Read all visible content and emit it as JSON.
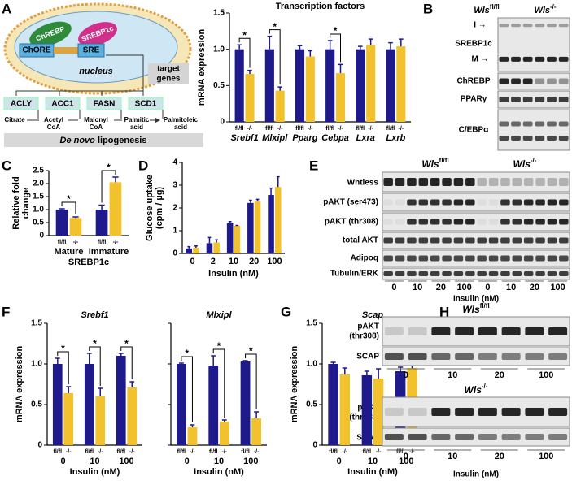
{
  "chart_data": [
    {
      "type": "bar",
      "title": "Transcription factors",
      "ylabel": [
        "mRNA expression"
      ],
      "categories": [
        "Srebf1",
        "Mlxipl",
        "Pparg",
        "Cebpa",
        "Lxra",
        "Lxrb"
      ],
      "series": [
        {
          "name": "fl/fl",
          "color": "#1f1a8c",
          "values": [
            1.0,
            1.0,
            1.0,
            1.0,
            1.0,
            1.0
          ],
          "errors": [
            0.06,
            0.18,
            0.05,
            0.12,
            0.04,
            0.09
          ]
        },
        {
          "name": "-/-",
          "color": "#f2c12e",
          "values": [
            0.66,
            0.43,
            0.9,
            0.67,
            1.06,
            1.04
          ],
          "errors": [
            0.05,
            0.05,
            0.08,
            0.12,
            0.08,
            0.1
          ]
        }
      ],
      "ylim": [
        0,
        1.5
      ],
      "yticks": [
        0,
        0.5,
        {
          "value": 1,
          "label": "1.0"
        },
        1.5
      ],
      "annotation": "*",
      "significant": [
        true,
        true,
        false,
        true,
        false,
        false
      ]
    },
    {
      "type": "bar",
      "ylabel": [
        "Relative fold",
        "change"
      ],
      "xlabel": "SREBP1c",
      "categories": [
        "Mature",
        "Immature"
      ],
      "series": [
        {
          "name": "fl/fl",
          "color": "#1f1a8c",
          "values": [
            1.0,
            1.0
          ],
          "errors": [
            0.03,
            0.17
          ]
        },
        {
          "name": "-/-",
          "color": "#f2c12e",
          "values": [
            0.68,
            2.05
          ],
          "errors": [
            0.04,
            0.2
          ]
        }
      ],
      "ylim": [
        0,
        2.5
      ],
      "yticks": [
        0,
        0.5,
        {
          "value": 1,
          "label": "1.0"
        },
        1.5,
        {
          "value": 2,
          "label": "2.0"
        },
        2.5
      ],
      "annotation": "*",
      "significant": [
        true,
        true
      ]
    },
    {
      "type": "bar",
      "ylabel": [
        "Glucose uptake",
        "(cpm / µg)"
      ],
      "xlabel": "Insulin (nM)",
      "categories": [
        "0",
        "2",
        "10",
        "20",
        "100"
      ],
      "series": [
        {
          "color": "#1f1a8c",
          "values": [
            0.22,
            0.45,
            1.33,
            2.22,
            2.57
          ],
          "errors": [
            0.08,
            0.25,
            0.07,
            0.12,
            0.3
          ]
        },
        {
          "color": "#f2c12e",
          "values": [
            0.25,
            0.48,
            1.22,
            2.28,
            2.92
          ],
          "errors": [
            0.08,
            0.12,
            0.01,
            0.1,
            0.45
          ]
        }
      ],
      "ylim": [
        0,
        4
      ],
      "yticks": [
        0,
        1,
        2,
        3,
        4
      ]
    },
    {
      "type": "bar",
      "title": "Srebf1",
      "ylabel": [
        "mRNA expression"
      ],
      "xlabel": "Insulin (nM)",
      "categories": [
        "0",
        "10",
        "100"
      ],
      "series": [
        {
          "name": "fl/fl",
          "color": "#1f1a8c",
          "values": [
            1.0,
            1.0,
            1.1
          ],
          "errors": [
            0.07,
            0.13,
            0.03
          ]
        },
        {
          "name": "-/-",
          "color": "#f2c12e",
          "values": [
            0.64,
            0.6,
            0.71
          ],
          "errors": [
            0.08,
            0.1,
            0.07
          ]
        }
      ],
      "ylim": [
        0,
        1.5
      ],
      "yticks": [
        0,
        0.5,
        {
          "value": 1,
          "label": "1.0"
        },
        1.5
      ],
      "annotation": "*",
      "significant": [
        true,
        true,
        true
      ]
    },
    {
      "type": "bar",
      "title": "Mlxipl",
      "xlabel": "Insulin (nM)",
      "categories": [
        "0",
        "10",
        "100"
      ],
      "series": [
        {
          "name": "fl/fl",
          "color": "#1f1a8c",
          "values": [
            1.0,
            0.98,
            1.03
          ],
          "errors": [
            0.01,
            0.12,
            0.01
          ]
        },
        {
          "name": "-/-",
          "color": "#f2c12e",
          "values": [
            0.22,
            0.29,
            0.33
          ],
          "errors": [
            0.03,
            0.02,
            0.08
          ]
        }
      ],
      "ylim": [
        0,
        1.5
      ],
      "yticks": [
        0,
        0.5,
        1,
        1.5
      ],
      "ytick_labels": false,
      "annotation": "*",
      "significant": [
        true,
        true,
        true
      ]
    },
    {
      "type": "bar",
      "title": "Scap",
      "ylabel": [
        "mRNA expression"
      ],
      "xlabel": "Insulin (nM)",
      "categories": [
        "0",
        "10",
        "100"
      ],
      "series": [
        {
          "name": "fl/fl",
          "color": "#1f1a8c",
          "values": [
            1.0,
            0.86,
            0.91
          ],
          "errors": [
            0.02,
            0.05,
            0.05
          ]
        },
        {
          "name": "-/-",
          "color": "#f2c12e",
          "values": [
            0.87,
            0.82,
            0.95
          ],
          "errors": [
            0.08,
            0.12,
            0.07
          ]
        }
      ],
      "ylim": [
        0,
        1.5
      ],
      "yticks": [
        0,
        0.5,
        {
          "value": 1,
          "label": "1.0"
        },
        1.5
      ]
    }
  ],
  "figure": {
    "panel_labels": [
      "A",
      "B",
      "C",
      "D",
      "E",
      "F",
      "G",
      "H"
    ],
    "diagram": {
      "proteins": [
        "ChREBP",
        "SREBP1c"
      ],
      "elements": [
        "ChORE",
        "SRE"
      ],
      "compartment": "nucleus",
      "target": [
        "target",
        "genes"
      ],
      "genes": [
        "ACLY",
        "ACC1",
        "FASN",
        "SCD1"
      ],
      "pathway": [
        [
          "Citrate"
        ],
        [
          "Acetyl",
          "CoA"
        ],
        [
          "Malonyl",
          "CoA"
        ],
        [
          "Palmitic",
          "acid"
        ],
        [
          "Palmitoleic",
          "acid"
        ]
      ],
      "process": [
        "De novo",
        "lipogenesis"
      ]
    },
    "blot_b": {
      "genotype": "Wls",
      "groups": [
        "fl/fl",
        "-/-"
      ],
      "rows": [
        "SREBP1c",
        "ChREBP",
        "PPARγ",
        "C/EBPα"
      ],
      "markers": [
        "I →",
        "M →"
      ]
    },
    "blot_e": {
      "genotype": "Wls",
      "groups": [
        "fl/fl",
        "-/-"
      ],
      "rows": [
        "Wntless",
        "pAKT (ser473)",
        "pAKT (thr308)",
        "total AKT",
        "Adipoq",
        "Tubulin/ERK"
      ],
      "lanes": [
        "0",
        "10",
        "20",
        "100",
        "0",
        "10",
        "20",
        "100"
      ],
      "xlabel": "Insulin (nM)"
    },
    "blot_h": {
      "genotype": "Wls",
      "groups": [
        "fl/fl",
        "-/-"
      ],
      "rows": [
        [
          "pAKT",
          "(thr308)"
        ],
        "SCAP"
      ],
      "lanes": [
        "0",
        "10",
        "20",
        "100"
      ],
      "xlabel": "Insulin (nM)"
    }
  }
}
